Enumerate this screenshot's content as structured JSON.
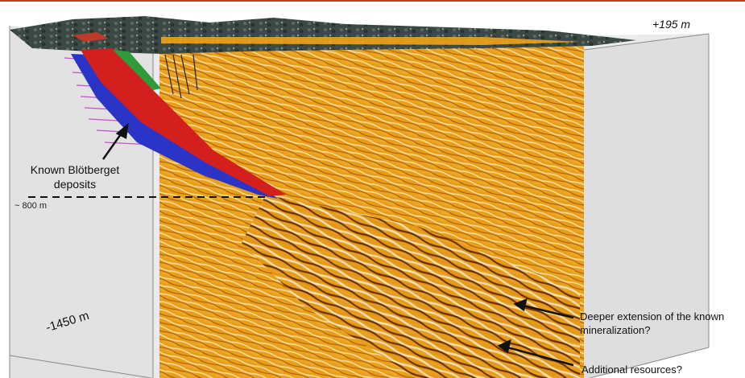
{
  "labels": {
    "top_depth": "+195 m",
    "mid_depth": "~ 800 m",
    "bottom_depth": "-1450 m",
    "known_deposits": "Known Blötberget deposits",
    "deeper_extension": "Deeper extension of the known mineralization?",
    "additional_resources": "Additional resources?"
  },
  "colors": {
    "background": "#ffffff",
    "box_faces": "#e6e6e6",
    "seismic_base": "#f2a31a",
    "seismic_bright": "#fde9a8",
    "seismic_dark": "#6a2a08",
    "surface_topography": "#3b4a44",
    "orebody_red": "#d41f1f",
    "orebody_blue": "#2a35c8",
    "drillhole_magenta": "#c23ad0",
    "annotation_line": "#111111"
  }
}
